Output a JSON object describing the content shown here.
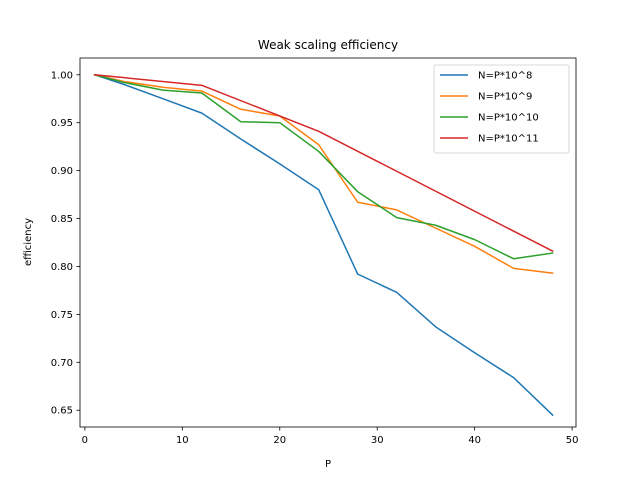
{
  "chart_data": {
    "type": "line",
    "title": "Weak scaling efficiency",
    "xlabel": "P",
    "ylabel": "efficiency",
    "xlim": [
      -0.5,
      50.4
    ],
    "ylim": [
      0.6325,
      1.0175
    ],
    "x_ticks": [
      0,
      10,
      20,
      30,
      40,
      50
    ],
    "y_ticks": [
      0.65,
      0.7,
      0.75,
      0.8,
      0.85,
      0.9,
      0.95,
      1.0
    ],
    "x_tick_labels": [
      "0",
      "10",
      "20",
      "30",
      "40",
      "50"
    ],
    "y_tick_labels": [
      "0.65",
      "0.70",
      "0.75",
      "0.80",
      "0.85",
      "0.90",
      "0.95",
      "1.00"
    ],
    "grid": false,
    "legend_position": "top-right",
    "series": [
      {
        "name": "N=P*10^8",
        "color": "#1f77b4",
        "x": [
          1,
          4,
          8,
          12,
          16,
          20,
          24,
          28,
          32,
          36,
          40,
          44,
          48
        ],
        "values": [
          1.0,
          0.99,
          0.975,
          0.96,
          0.933,
          0.907,
          0.88,
          0.792,
          0.773,
          0.737,
          0.71,
          0.684,
          0.645
        ]
      },
      {
        "name": "N=P*10^9",
        "color": "#ff7f0e",
        "x": [
          1,
          4,
          8,
          12,
          16,
          20,
          24,
          28,
          32,
          36,
          40,
          44,
          48
        ],
        "values": [
          1.0,
          0.993,
          0.987,
          0.983,
          0.964,
          0.957,
          0.927,
          0.867,
          0.859,
          0.84,
          0.821,
          0.798,
          0.793
        ]
      },
      {
        "name": "N=P*10^10",
        "color": "#2ca02c",
        "x": [
          1,
          4,
          8,
          12,
          16,
          20,
          24,
          28,
          32,
          36,
          40,
          44,
          48
        ],
        "values": [
          1.0,
          0.992,
          0.984,
          0.981,
          0.951,
          0.95,
          0.92,
          0.878,
          0.851,
          0.843,
          0.828,
          0.808,
          0.814
        ]
      },
      {
        "name": "N=P*10^11",
        "color": "#d62728",
        "x": [
          1,
          12,
          24,
          48
        ],
        "values": [
          1.0,
          0.989,
          0.941,
          0.816
        ]
      }
    ]
  }
}
